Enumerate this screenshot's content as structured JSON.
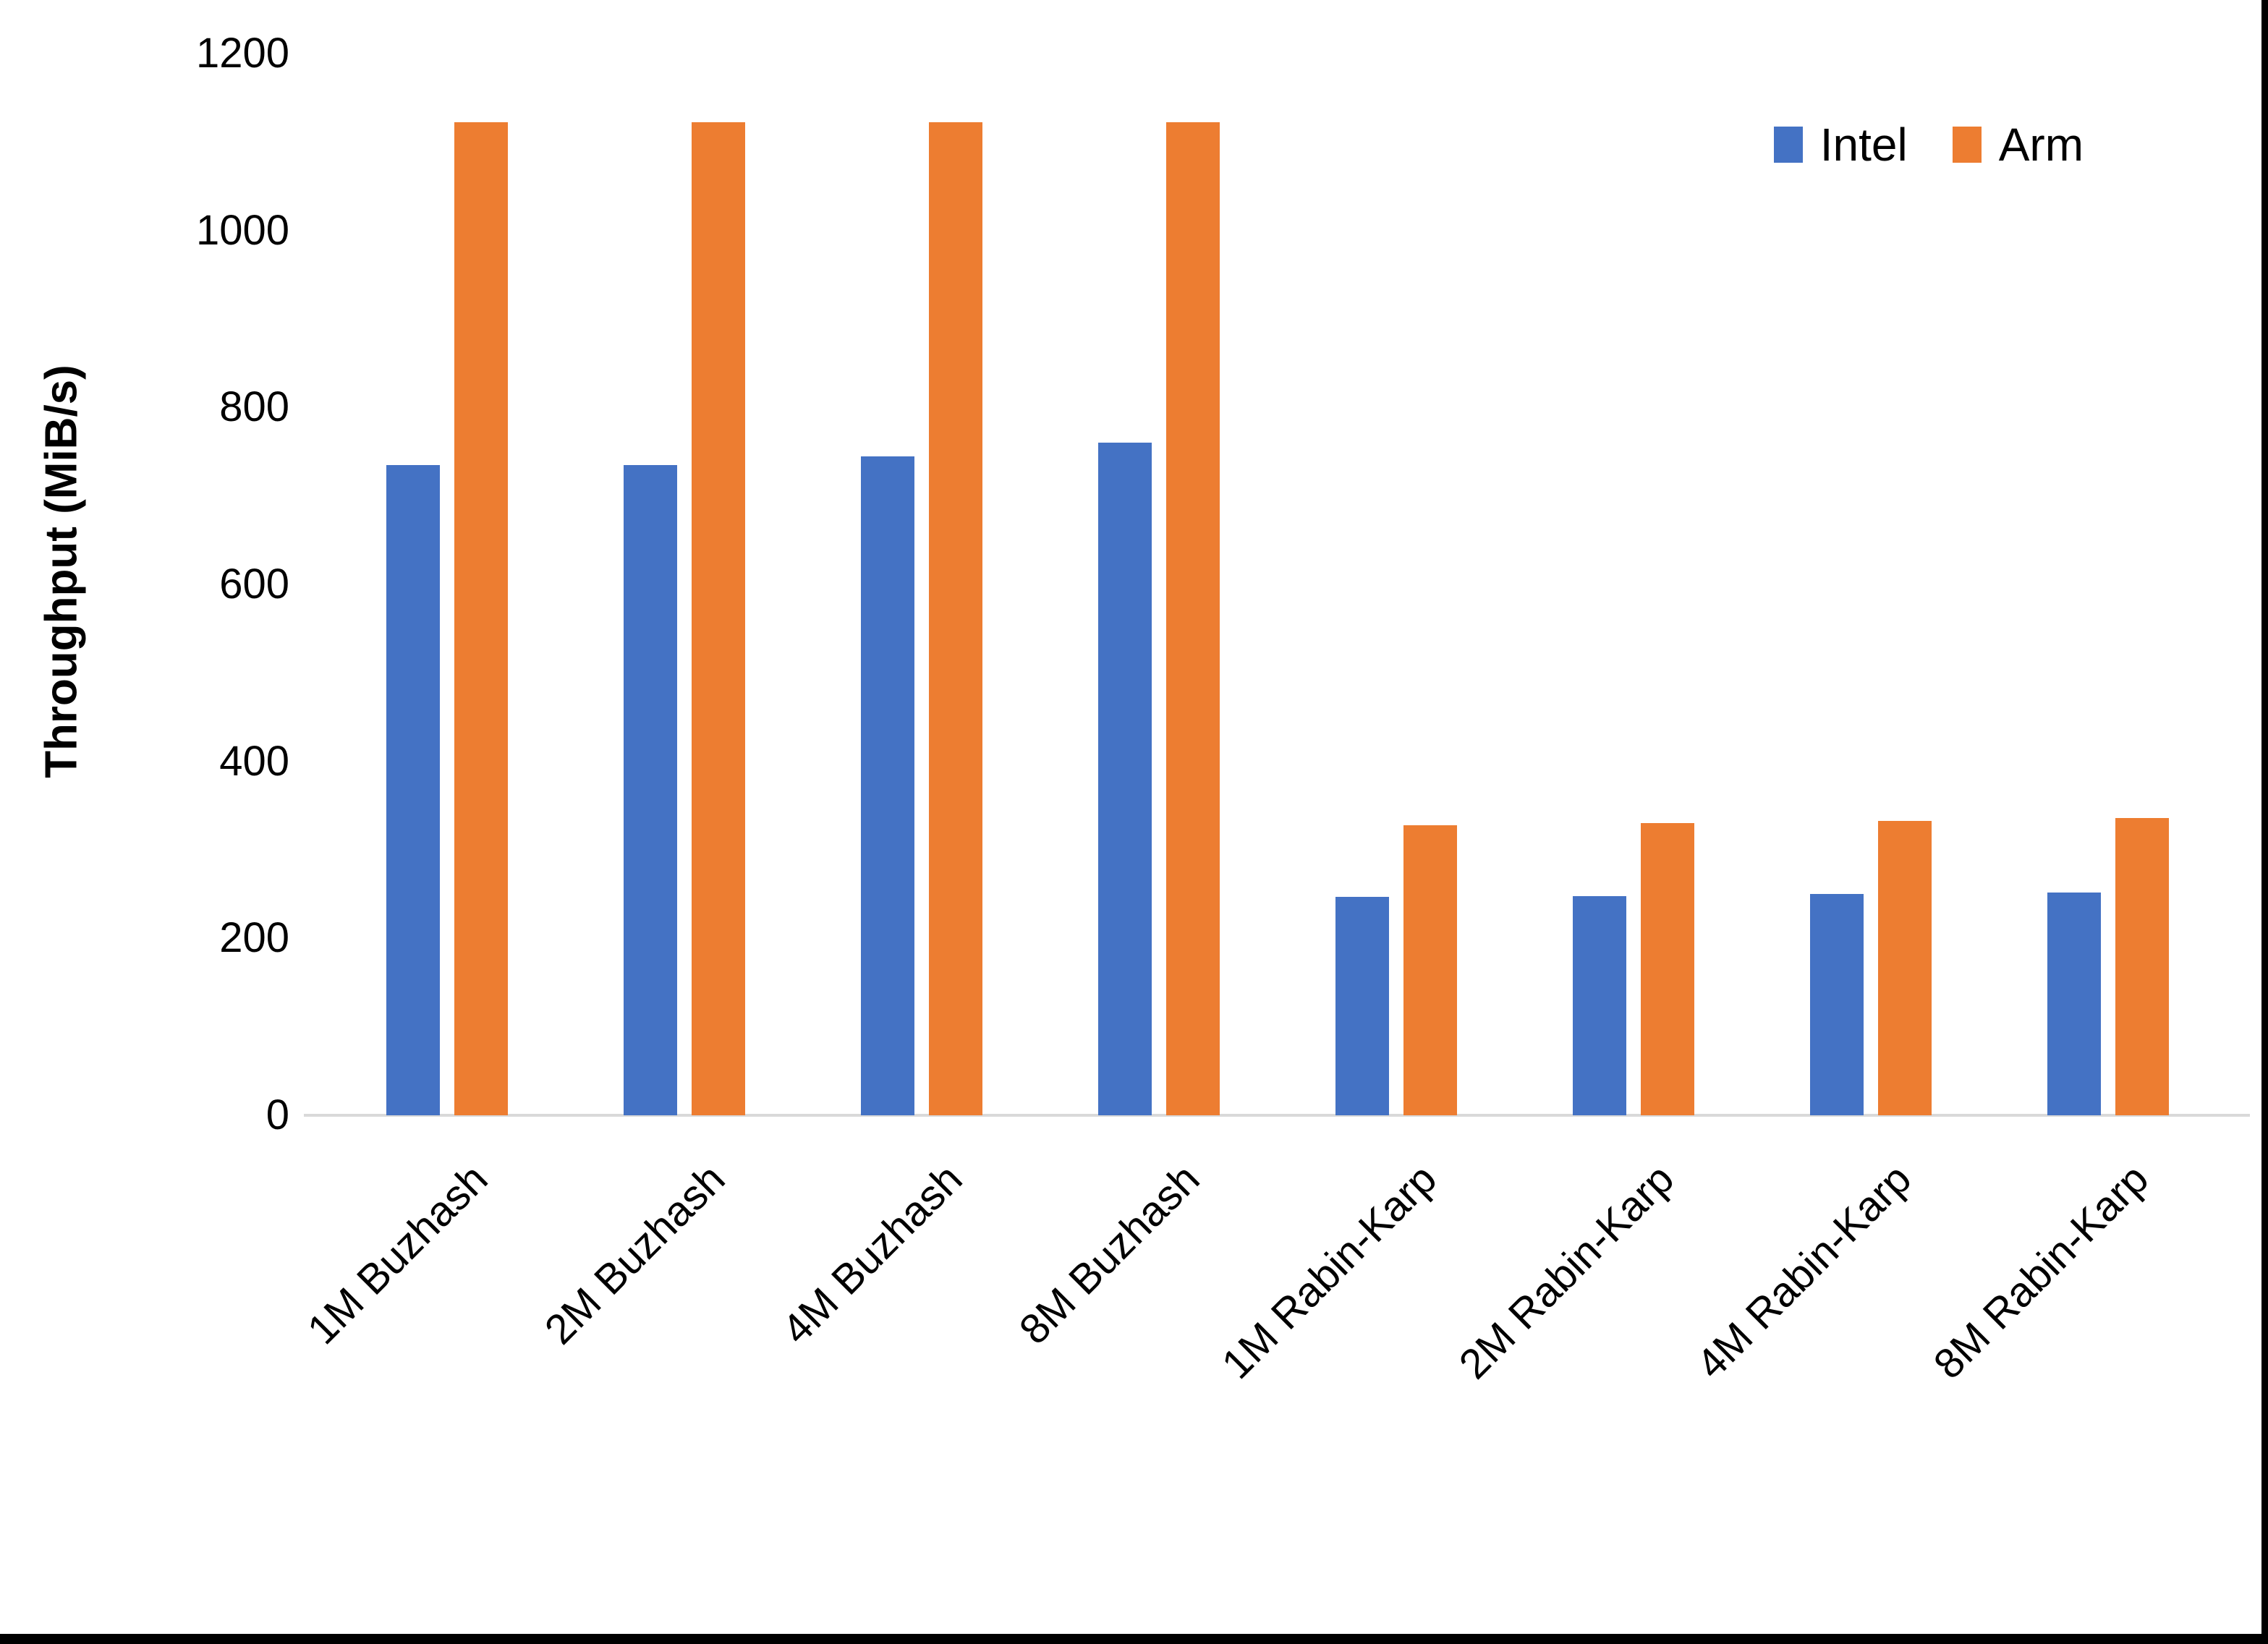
{
  "page": {
    "background": "#FFFFFF",
    "edge_color": "#000000"
  },
  "legend": {
    "items": [
      {
        "label": "Intel",
        "color": "#4472C4"
      },
      {
        "label": "Arm",
        "color": "#ED7D31"
      }
    ]
  },
  "chart_data": {
    "type": "bar",
    "title": "",
    "xlabel": "",
    "ylabel": "Throughput (MiB/s)",
    "ylim": [
      0,
      1200
    ],
    "yticks": [
      0,
      200,
      400,
      600,
      800,
      1000,
      1200
    ],
    "grid": false,
    "legend_position": "top-right",
    "axis_line_color": "#D9D9D9",
    "text_color": "#000000",
    "categories": [
      "1M Buzhash",
      "2M Buzhash",
      "4M Buzhash",
      "8M Buzhash",
      "1M Rabin-Karp",
      "2M Rabin-Karp",
      "4M Rabin-Karp",
      "8M Rabin-Karp"
    ],
    "series": [
      {
        "name": "Intel",
        "color": "#4472C4",
        "values": [
          735,
          735,
          745,
          760,
          247,
          248,
          250,
          252
        ]
      },
      {
        "name": "Arm",
        "color": "#ED7D31",
        "values": [
          1122,
          1122,
          1122,
          1122,
          328,
          330,
          333,
          336
        ]
      }
    ]
  }
}
